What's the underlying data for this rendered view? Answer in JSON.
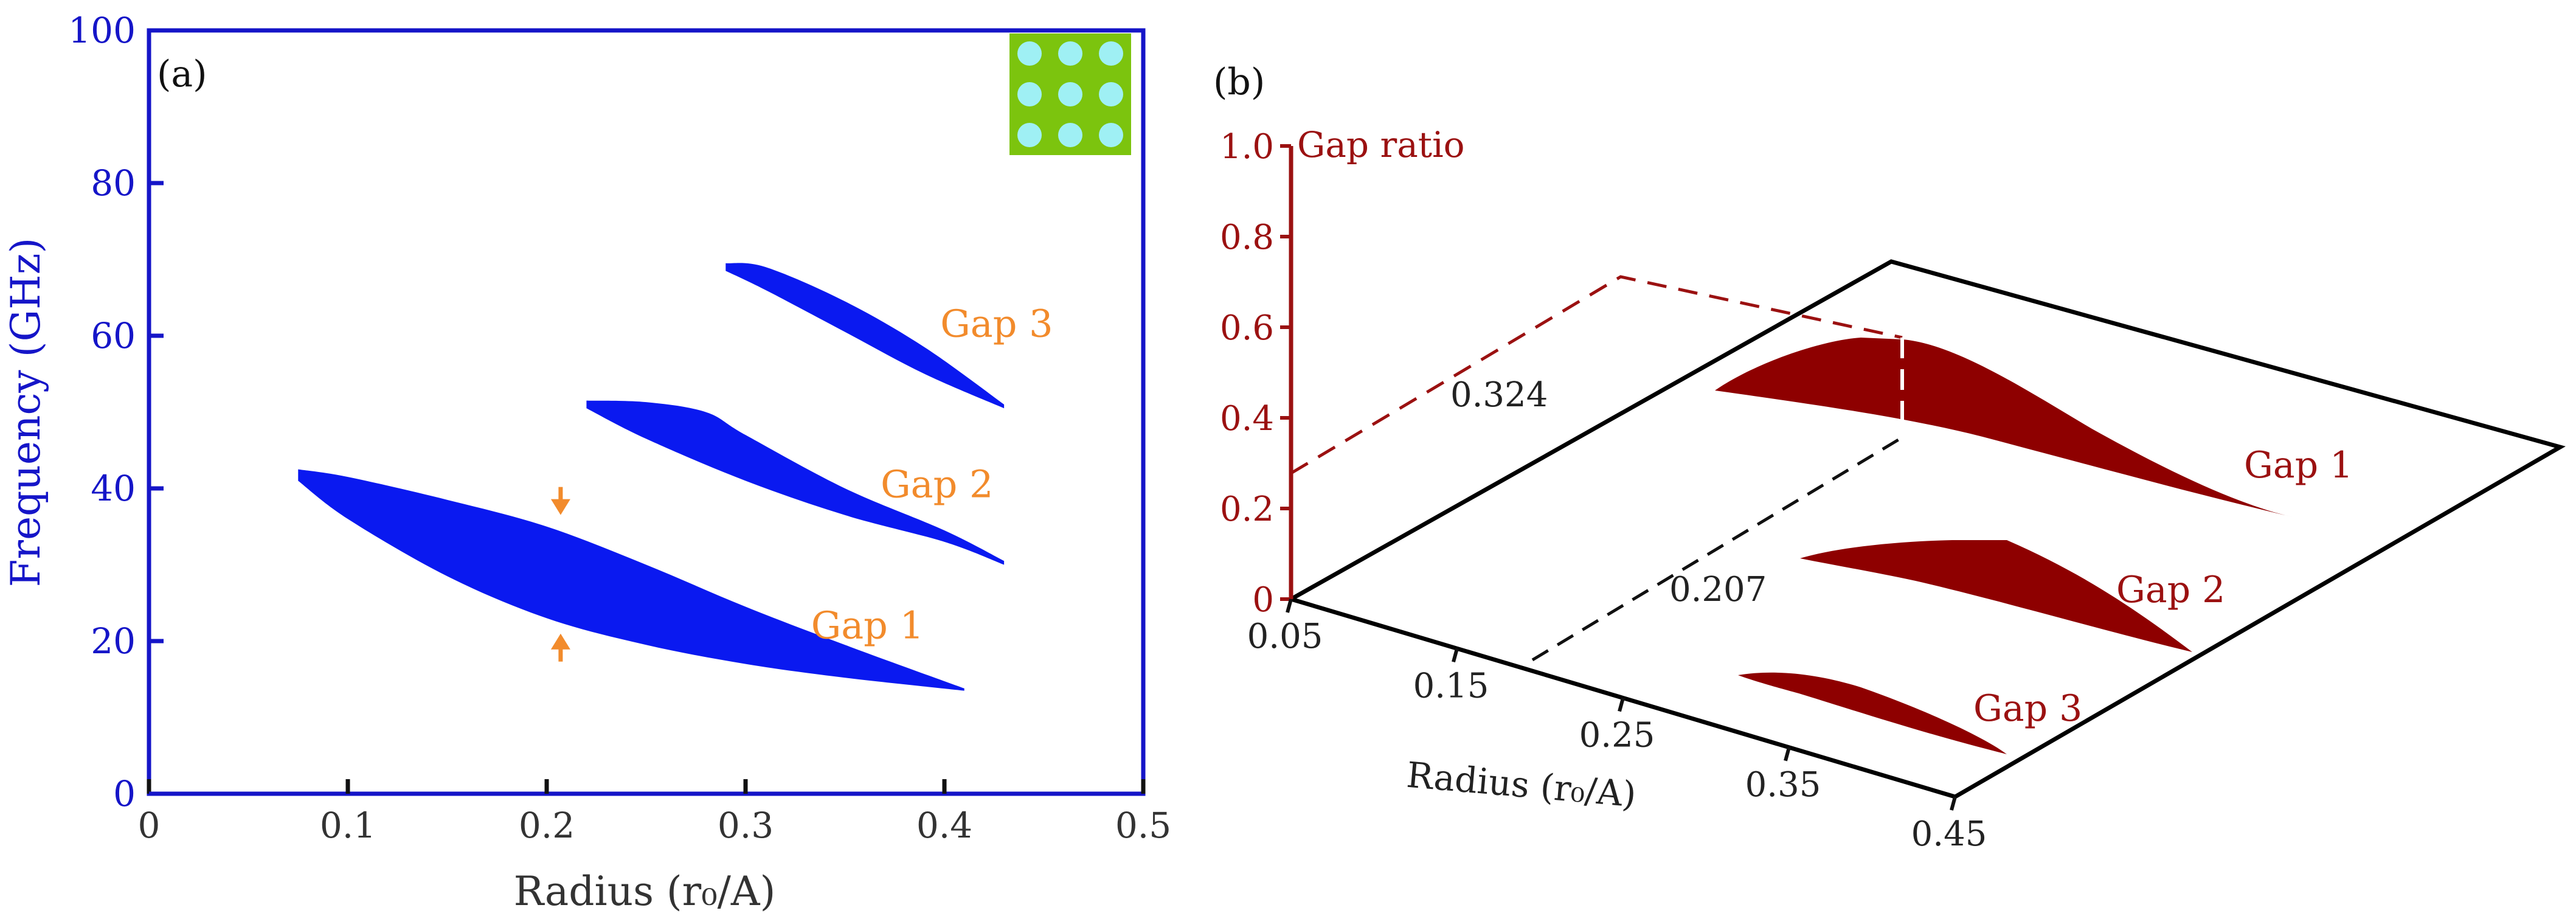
{
  "chart_data": [
    {
      "panel": "(a)",
      "type": "area",
      "title": "",
      "xlabel": "Radius (r₀/A)",
      "ylabel": "Frequency (GHz)",
      "xlim": [
        0,
        0.5
      ],
      "ylim": [
        0,
        100
      ],
      "xticks": [
        "0",
        "0.1",
        "0.2",
        "0.3",
        "0.4",
        "0.5"
      ],
      "yticks": [
        "0",
        "20",
        "40",
        "60",
        "80",
        "100"
      ],
      "colors": {
        "axis": "#1515c8",
        "gap": "#0a19f0",
        "label": "#f28b2c",
        "inset_bg": "#7cc40e",
        "inset_dot": "#9ff0f4"
      },
      "series": [
        {
          "name": "Gap 1",
          "upper": [
            [
              0.075,
              42.5
            ],
            [
              0.1,
              41.5
            ],
            [
              0.15,
              38.5
            ],
            [
              0.2,
              35.0
            ],
            [
              0.25,
              30.0
            ],
            [
              0.3,
              24.5
            ],
            [
              0.35,
              19.5
            ],
            [
              0.41,
              13.8
            ]
          ],
          "lower": [
            [
              0.075,
              41.0
            ],
            [
              0.1,
              36.0
            ],
            [
              0.15,
              28.5
            ],
            [
              0.2,
              23.0
            ],
            [
              0.25,
              19.5
            ],
            [
              0.3,
              17.0
            ],
            [
              0.35,
              15.2
            ],
            [
              0.41,
              13.5
            ]
          ]
        },
        {
          "name": "Gap 2",
          "upper": [
            [
              0.22,
              51.5
            ],
            [
              0.25,
              51.3
            ],
            [
              0.28,
              50.0
            ],
            [
              0.3,
              47.0
            ],
            [
              0.35,
              40.0
            ],
            [
              0.4,
              34.5
            ],
            [
              0.43,
              30.5
            ]
          ],
          "lower": [
            [
              0.22,
              50.5
            ],
            [
              0.25,
              46.5
            ],
            [
              0.3,
              41.0
            ],
            [
              0.35,
              36.5
            ],
            [
              0.4,
              33.0
            ],
            [
              0.43,
              30.0
            ]
          ]
        },
        {
          "name": "Gap 3",
          "upper": [
            [
              0.29,
              69.5
            ],
            [
              0.31,
              69.0
            ],
            [
              0.35,
              64.5
            ],
            [
              0.39,
              58.5
            ],
            [
              0.43,
              51.0
            ]
          ],
          "lower": [
            [
              0.29,
              68.5
            ],
            [
              0.31,
              66.0
            ],
            [
              0.35,
              60.5
            ],
            [
              0.39,
              55.0
            ],
            [
              0.43,
              50.5
            ]
          ]
        }
      ],
      "labels": [
        "Gap 3",
        "Gap 2",
        "Gap 1"
      ],
      "annotation": {
        "x": 0.207,
        "y_top": 37.0,
        "y_bottom": 20.5,
        "marker": "arrows"
      }
    },
    {
      "panel": "(b)",
      "type": "area",
      "title": "",
      "xlabel": "Radius (r₀/A)",
      "zlabel": "Gap ratio",
      "xlim": [
        0.05,
        0.45
      ],
      "zlim": [
        0,
        1.0
      ],
      "xticks": [
        "0.05",
        "0.15",
        "0.25",
        "0.35",
        "0.45"
      ],
      "zticks": [
        "0",
        "0.2",
        "0.4",
        "0.6",
        "0.8",
        "1.0"
      ],
      "colors": {
        "axis": "#9b1111",
        "gap": "#8e0000",
        "frame": "#000000",
        "dash_red": "#9b1111",
        "dash_black": "#111111"
      },
      "series": [
        {
          "name": "Gap 1",
          "peak_ratio": 0.324,
          "peak_radius": 0.207
        },
        {
          "name": "Gap 2"
        },
        {
          "name": "Gap 3"
        }
      ],
      "labels": [
        "Gap 1",
        "Gap 2",
        "Gap 3"
      ],
      "annotations": [
        "0.324",
        "0.207"
      ]
    }
  ]
}
